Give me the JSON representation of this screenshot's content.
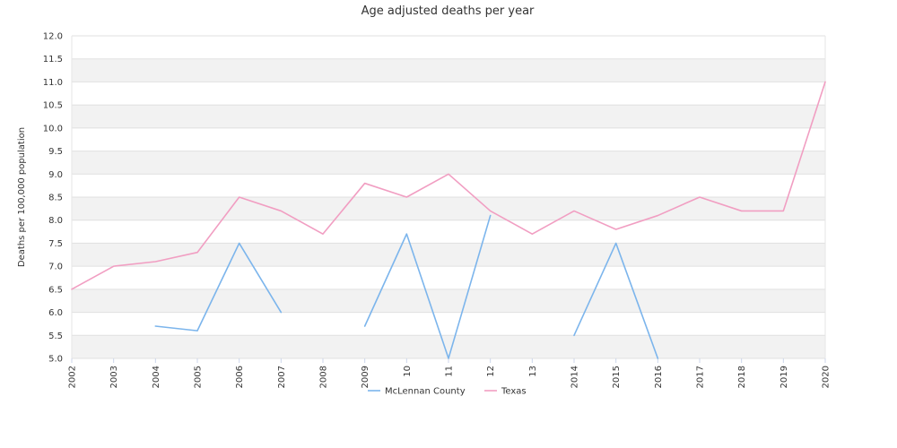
{
  "chart_data": {
    "type": "line",
    "title": "Age adjusted deaths per year",
    "xlabel": "",
    "ylabel": "Deaths per 100,000 population",
    "ylim": [
      5.0,
      12.0
    ],
    "y_ticks": [
      "5.0",
      "5.5",
      "6.0",
      "6.5",
      "7.0",
      "7.5",
      "8.0",
      "8.5",
      "9.0",
      "9.5",
      "10.0",
      "10.5",
      "11.0",
      "11.5",
      "12.0"
    ],
    "x": [
      "2002",
      "2003",
      "2004",
      "2005",
      "2006",
      "2007",
      "2008",
      "2009",
      "10",
      "11",
      "12",
      "13",
      "2014",
      "2015",
      "2016",
      "2017",
      "2018",
      "2019",
      "2020"
    ],
    "grid": "horizontal bands",
    "legend_position": "bottom",
    "series": [
      {
        "name": "McLennan County",
        "color": "#7cb5ec",
        "values": [
          null,
          null,
          5.7,
          5.6,
          7.5,
          6.0,
          null,
          5.7,
          7.7,
          5.0,
          8.1,
          null,
          5.5,
          7.5,
          5.0,
          null,
          null,
          null,
          null
        ]
      },
      {
        "name": "Texas",
        "color": "#f19ec2",
        "values": [
          6.5,
          7.0,
          7.1,
          7.3,
          8.5,
          8.2,
          7.7,
          8.8,
          8.5,
          9.0,
          8.2,
          7.7,
          8.2,
          7.8,
          8.1,
          8.5,
          8.2,
          8.2,
          11.0
        ]
      }
    ]
  }
}
